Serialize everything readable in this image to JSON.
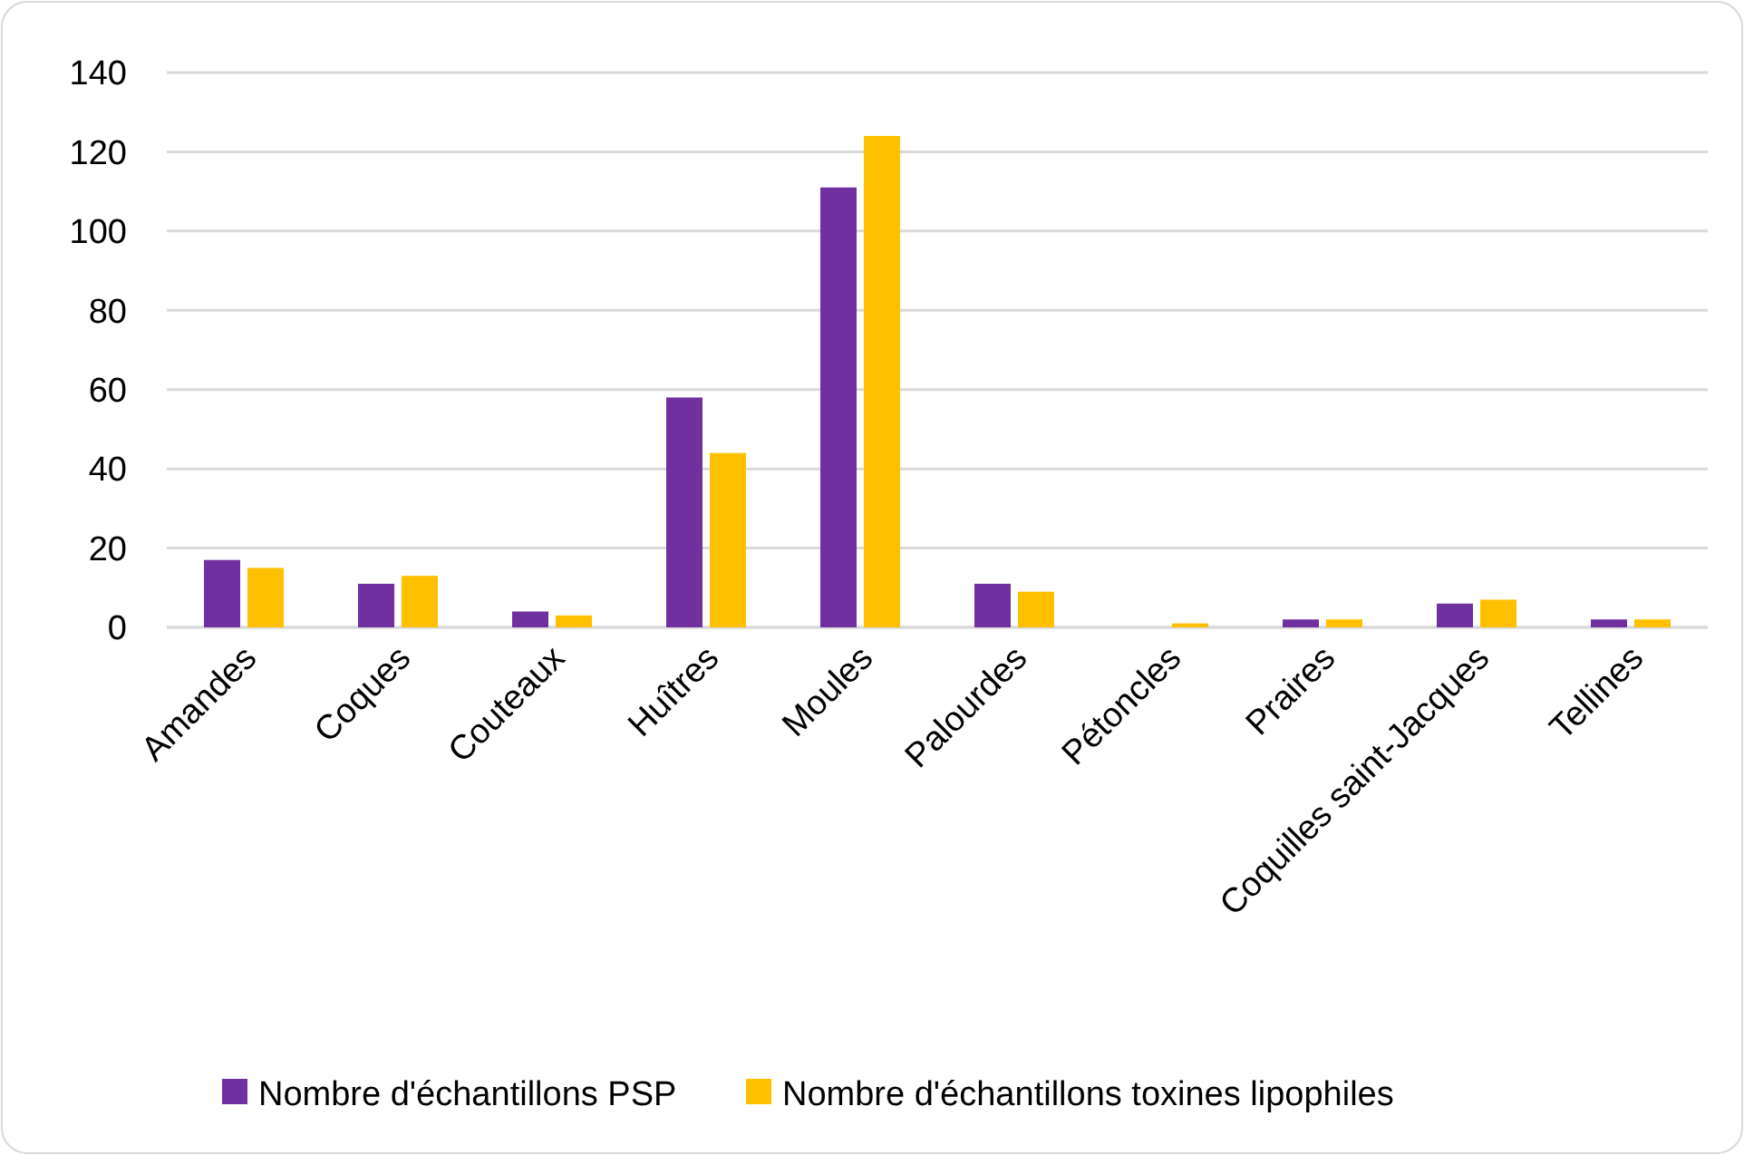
{
  "chart_data": {
    "type": "bar",
    "categories": [
      "Amandes",
      "Coques",
      "Couteaux",
      "Huîtres",
      "Moules",
      "Palourdes",
      "Pétoncles",
      "Praires",
      "Coquilles saint-Jacques",
      "Tellines"
    ],
    "series": [
      {
        "name": "Nombre d'échantillons PSP",
        "color": "#7030a0",
        "values": [
          17,
          11,
          4,
          58,
          111,
          11,
          0,
          2,
          6,
          2
        ]
      },
      {
        "name": "Nombre d'échantillons toxines lipophiles",
        "color": "#ffc000",
        "values": [
          15,
          13,
          3,
          44,
          124,
          9,
          1,
          2,
          7,
          2
        ]
      }
    ],
    "ylim": [
      0,
      140
    ],
    "yticks": [
      0,
      20,
      40,
      60,
      80,
      100,
      120,
      140
    ],
    "grid": "y",
    "legend": "bottom"
  }
}
